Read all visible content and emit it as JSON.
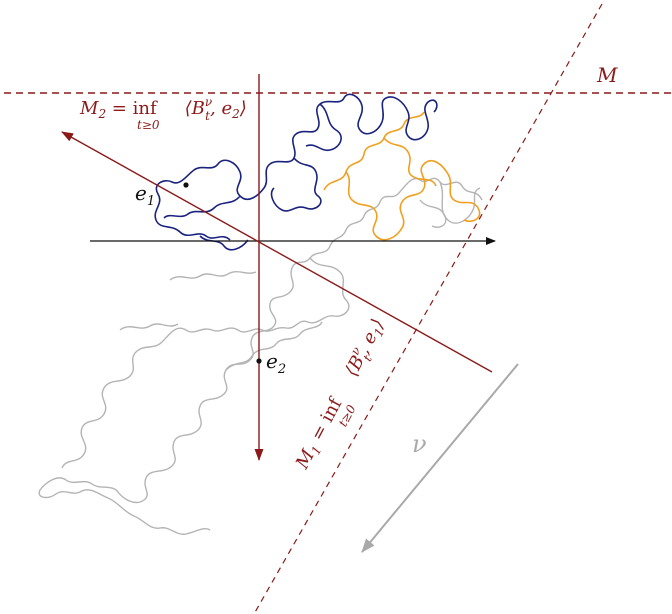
{
  "labels": {
    "M": "M",
    "M2_lhs": "M",
    "M2_sub": "2",
    "M2_eq": " = inf",
    "M2_under": "t≥0",
    "M2_rhs": "⟨B",
    "M2_nu": "ν",
    "M2_t": "t",
    "M2_tail": ", e",
    "M2_tailsub": "2",
    "M2_close": "⟩",
    "M1_lhs": "M",
    "M1_sub": "1",
    "M1_eq": " = inf",
    "M1_under": "t≥0",
    "M1_rhs": "⟨B",
    "M1_nu": "ν",
    "M1_t": "t",
    "M1_tail": ", e",
    "M1_tailsub": "1",
    "M1_close": "⟩",
    "e1": "e",
    "e1_sub": "1",
    "e2": "e",
    "e2_sub": "2",
    "nu": "ν"
  },
  "colors": {
    "dark_red": "#8b1a1a",
    "blue_path": "#1a237e",
    "orange_path": "#f0a020",
    "gray_path": "#b4b4b4",
    "axis": "#111111",
    "nu_arrow": "#a9a9a9"
  }
}
